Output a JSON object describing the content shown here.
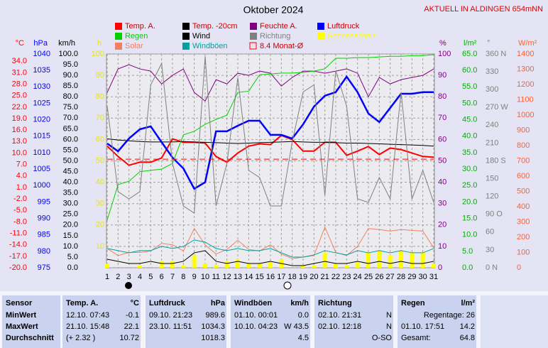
{
  "chart_data": {
    "type": "line",
    "title": "Oktober 2024",
    "annotation": "AKTUELL IN ALDINGEN 654mNN",
    "x": [
      1,
      2,
      3,
      4,
      5,
      6,
      7,
      8,
      9,
      10,
      11,
      12,
      13,
      14,
      15,
      16,
      17,
      18,
      19,
      20,
      21,
      22,
      23,
      24,
      25,
      26,
      27,
      28,
      29,
      30,
      31
    ],
    "xlim": [
      1,
      31
    ],
    "xticks": [
      1,
      2,
      3,
      4,
      5,
      6,
      7,
      8,
      9,
      10,
      11,
      12,
      13,
      14,
      15,
      16,
      17,
      18,
      19,
      20,
      21,
      22,
      23,
      24,
      25,
      26,
      27,
      28,
      29,
      30,
      31
    ],
    "grid": true,
    "axes": [
      {
        "label": "°C",
        "color": "#ff0000",
        "side": "left",
        "lim": [
          -20,
          35.9
        ],
        "ticks": [
          {
            "value": 34,
            "label": "34.0"
          },
          {
            "value": 31,
            "label": "31.0"
          },
          {
            "value": 28,
            "label": "28.0"
          },
          {
            "value": 25,
            "label": "25.0"
          },
          {
            "value": 22,
            "label": "22.0"
          },
          {
            "value": 19,
            "label": "19.0"
          },
          {
            "value": 16,
            "label": "16.0"
          },
          {
            "value": 13,
            "label": "13.0"
          },
          {
            "value": 10,
            "label": "10.0"
          },
          {
            "value": 7,
            "label": "7.0"
          },
          {
            "value": 4,
            "label": "4.0"
          },
          {
            "value": 1,
            "label": "1.0"
          },
          {
            "value": -2,
            "label": "-2.0"
          },
          {
            "value": -5,
            "label": "-5.0"
          },
          {
            "value": -8,
            "label": "-8.0"
          },
          {
            "value": -11,
            "label": "-11.0"
          },
          {
            "value": -14,
            "label": "-14.0"
          },
          {
            "value": -17,
            "label": "-17.0"
          },
          {
            "value": -20,
            "label": "-20.0"
          }
        ]
      },
      {
        "label": "hPa",
        "color": "#0000ff",
        "side": "left",
        "lim": [
          975,
          1040
        ],
        "ticks": [
          1040,
          1035,
          1030,
          1025,
          1020,
          1015,
          1010,
          1005,
          1000,
          995,
          990,
          985,
          980,
          975
        ]
      },
      {
        "label": "km/h",
        "color": "#000000",
        "side": "left",
        "lim": [
          0,
          100
        ],
        "ticks": [
          {
            "value": 100,
            "label": "100.0"
          },
          {
            "value": 95,
            "label": "95.0"
          },
          {
            "value": 90,
            "label": "90.0"
          },
          {
            "value": 85,
            "label": "85.0"
          },
          {
            "value": 80,
            "label": "80.0"
          },
          {
            "value": 75,
            "label": "75.0"
          },
          {
            "value": 70,
            "label": "70.0"
          },
          {
            "value": 65,
            "label": "65.0"
          },
          {
            "value": 60,
            "label": "60.0"
          },
          {
            "value": 55,
            "label": "55.0"
          },
          {
            "value": 50,
            "label": "50.0"
          },
          {
            "value": 45,
            "label": "45.0"
          },
          {
            "value": 40,
            "label": "40.0"
          },
          {
            "value": 35,
            "label": "35.0"
          },
          {
            "value": 30,
            "label": "30.0"
          },
          {
            "value": 25,
            "label": "25.0"
          },
          {
            "value": 20,
            "label": "20.0"
          },
          {
            "value": 15,
            "label": "15.0"
          },
          {
            "value": 10,
            "label": "10.0"
          },
          {
            "value": 5,
            "label": "5.0"
          },
          {
            "value": 0,
            "label": "0.0"
          }
        ]
      },
      {
        "label": "h",
        "color": "#e8e800",
        "side": "left",
        "lim": [
          0,
          100
        ],
        "ticks": [
          100,
          90,
          80,
          70,
          60,
          50,
          40,
          30,
          20,
          10
        ]
      },
      {
        "label": "%",
        "color": "#800080",
        "side": "right",
        "lim": [
          0,
          100
        ],
        "grid": true,
        "ticks": [
          100,
          90,
          80,
          70,
          60,
          50,
          40,
          30,
          20,
          10,
          0
        ]
      },
      {
        "label": "l/m²",
        "color": "#00b000",
        "side": "right",
        "lim": [
          0,
          65
        ],
        "ticks": [
          {
            "value": 65,
            "label": "65.0"
          },
          {
            "value": 60,
            "label": "60.0"
          },
          {
            "value": 55,
            "label": "55.0"
          },
          {
            "value": 50,
            "label": "50.0"
          },
          {
            "value": 45,
            "label": "45.0"
          },
          {
            "value": 40,
            "label": "40.0"
          },
          {
            "value": 35,
            "label": "35.0"
          },
          {
            "value": 30,
            "label": "30.0"
          },
          {
            "value": 25,
            "label": "25.0"
          },
          {
            "value": 20,
            "label": "20.0"
          },
          {
            "value": 15,
            "label": "15.0"
          },
          {
            "value": 10,
            "label": "10.0"
          },
          {
            "value": 5,
            "label": "5.0"
          },
          {
            "value": 0,
            "label": "0.0"
          }
        ]
      },
      {
        "label": "°",
        "color": "#808080",
        "side": "right",
        "lim": [
          0,
          360
        ],
        "ticks": [
          {
            "value": 360,
            "label": "360 N"
          },
          330,
          300,
          {
            "value": 270,
            "label": "270 W"
          },
          240,
          210,
          {
            "value": 180,
            "label": "180 S"
          },
          150,
          120,
          {
            "value": 90,
            "label": "90 O"
          },
          60,
          30,
          {
            "value": 0,
            "label": "0 N"
          }
        ]
      },
      {
        "label": "W/m²",
        "color": "#ff6030",
        "side": "right",
        "lim": [
          0,
          1400
        ],
        "ticks": [
          1400,
          1300,
          1200,
          1100,
          1000,
          900,
          800,
          700,
          600,
          500,
          400,
          300,
          200,
          100,
          0
        ]
      }
    ],
    "series": [
      {
        "name": "Temp. A.",
        "color": "#ff0000",
        "axis": 0,
        "width": 2,
        "values": [
          11.8,
          9.1,
          6.8,
          7.6,
          7.6,
          8.7,
          13.7,
          12.8,
          12.8,
          12.6,
          9.1,
          7.6,
          10.0,
          11.8,
          12.4,
          12.2,
          14.6,
          13.5,
          10.5,
          10.5,
          12.8,
          12.8,
          9.4,
          10.5,
          11.7,
          9.6,
          11.3,
          10.9,
          10.0,
          9.1,
          8.9
        ]
      },
      {
        "name": "Temp. -20cm",
        "color": "#000000",
        "axis": 0,
        "width": 1,
        "values": [
          13.7,
          13.4,
          13.2,
          13.0,
          12.9,
          12.9,
          12.9,
          13.0,
          12.9,
          12.8,
          12.7,
          12.6,
          12.5,
          12.6,
          12.7,
          12.8,
          12.9,
          13.0,
          12.9,
          12.8,
          12.8,
          12.7,
          12.6,
          12.6,
          12.5,
          12.4,
          12.3,
          12.2,
          12.1,
          12.0,
          11.8
        ]
      },
      {
        "name": "Feuchte A.",
        "color": "#800080",
        "axis": 4,
        "width": 1,
        "values": [
          82,
          93,
          95,
          93,
          92,
          86,
          90,
          93,
          82,
          78,
          88,
          86,
          91,
          90,
          92,
          91,
          85,
          89,
          92,
          92,
          91,
          92,
          93,
          91,
          80,
          89,
          86,
          88,
          89,
          90,
          93
        ]
      },
      {
        "name": "Luftdruck",
        "color": "#0000ff",
        "axis": 1,
        "width": 2.5,
        "values": [
          1012.8,
          1010.4,
          1014.3,
          1017.1,
          1018.0,
          1013.2,
          1008.5,
          1005.2,
          999.0,
          1001.0,
          1016.5,
          1016.5,
          1018.2,
          1019.7,
          1019.7,
          1015.4,
          1015.4,
          1014.3,
          1018.6,
          1024.0,
          1027.3,
          1028.4,
          1033.1,
          1028.4,
          1021.9,
          1019.3,
          1023.6,
          1027.9,
          1027.9,
          1028.4,
          1028.4
        ]
      },
      {
        "name": "Regen",
        "color": "#00d000",
        "axis": 5,
        "width": 1,
        "values": [
          14.5,
          25.3,
          26.3,
          29.2,
          29.6,
          30.0,
          31.7,
          40.4,
          41.5,
          43.6,
          45.1,
          46.4,
          53.3,
          53.7,
          58.7,
          58.9,
          59.2,
          59.2,
          59.4,
          59.8,
          60.5,
          63.7,
          63.7,
          63.9,
          63.9,
          64.1,
          64.3,
          64.3,
          64.5,
          64.5,
          64.8
        ]
      },
      {
        "name": "Wind",
        "color": "#000000",
        "axis": 2,
        "width": 1,
        "values": [
          4,
          3,
          2,
          2,
          3,
          2,
          2,
          3,
          7,
          8,
          3,
          2,
          3,
          2,
          2,
          3,
          2,
          1,
          1,
          2,
          3,
          2,
          2,
          3,
          2,
          3,
          2,
          3,
          2,
          2,
          3
        ]
      },
      {
        "name": "Richtung",
        "color": "#808080",
        "axis": 6,
        "width": 1,
        "values": [
          272,
          128,
          116,
          128,
          308,
          344,
          176,
          104,
          92,
          356,
          104,
          176,
          320,
          164,
          152,
          104,
          104,
          212,
          296,
          308,
          122,
          332,
          272,
          116,
          110,
          152,
          116,
          296,
          116,
          164,
          110
        ]
      },
      {
        "name": "Sonnenschein",
        "color": "#ffff00",
        "axis": 3,
        "style": "bar",
        "values": [
          2,
          0,
          0,
          1,
          0,
          3,
          3,
          1,
          6,
          2,
          1,
          3,
          4,
          2,
          2,
          3,
          4,
          0,
          1,
          1,
          7,
          2,
          1,
          3,
          7,
          8,
          6,
          8,
          7,
          7,
          2
        ]
      },
      {
        "name": "Solar",
        "color": "#f08060",
        "axis": 7,
        "width": 1,
        "values": [
          126,
          80,
          100,
          100,
          110,
          160,
          150,
          110,
          257,
          150,
          90,
          120,
          180,
          120,
          110,
          150,
          90,
          60,
          70,
          80,
          266,
          100,
          80,
          140,
          257,
          250,
          240,
          250,
          245,
          240,
          130
        ]
      },
      {
        "name": "Windböen",
        "color": "#00a0a0",
        "axis": 2,
        "width": 1,
        "values": [
          9,
          8,
          7,
          8,
          8,
          10,
          9,
          10,
          13,
          12,
          9,
          8,
          9,
          8,
          8,
          9,
          7,
          5,
          5,
          6,
          8,
          7,
          6,
          8,
          7,
          8,
          7,
          8,
          7,
          7,
          9
        ]
      },
      {
        "name": "8.4 Monat-Ø",
        "color": "#ff0000",
        "axis": 0,
        "style": "mean",
        "value": 8.4
      }
    ]
  },
  "table": {
    "row_labels_title": "Sensor",
    "row_labels": [
      "MinWert",
      "MaxWert",
      "Durchschnitt"
    ],
    "panels": [
      {
        "title": "Temp. A.",
        "unit": "°C",
        "rows": [
          [
            "12.10. 07:43",
            "-0.1"
          ],
          [
            "21.10. 15:48",
            "22.1"
          ],
          [
            "(+ 2.32 )",
            "10.72"
          ]
        ]
      },
      {
        "title": "Luftdruck",
        "unit": "hPa",
        "rows": [
          [
            "09.10. 21:23",
            "989.6"
          ],
          [
            "23.10. 11:51",
            "1034.3"
          ],
          [
            "1018.3"
          ]
        ]
      },
      {
        "title": "Windböen",
        "unit": "km/h",
        "rows": [
          [
            "01.10. 00:01",
            "0.0"
          ],
          [
            "10.10. 04:23",
            "W 43.5"
          ],
          [
            "4.5"
          ]
        ]
      },
      {
        "title": "Richtung",
        "rows": [
          [
            "02.10. 21:31",
            "N"
          ],
          [
            "02.10. 12:18",
            "N"
          ],
          [
            "O-SO"
          ]
        ]
      },
      {
        "title": "Regen",
        "unit": "l/m²",
        "rows": [
          [
            "Regentage: 26"
          ],
          [
            "01.10. 17:51",
            "14.2"
          ],
          [
            "Gesamt:",
            "64.8"
          ]
        ]
      }
    ]
  }
}
